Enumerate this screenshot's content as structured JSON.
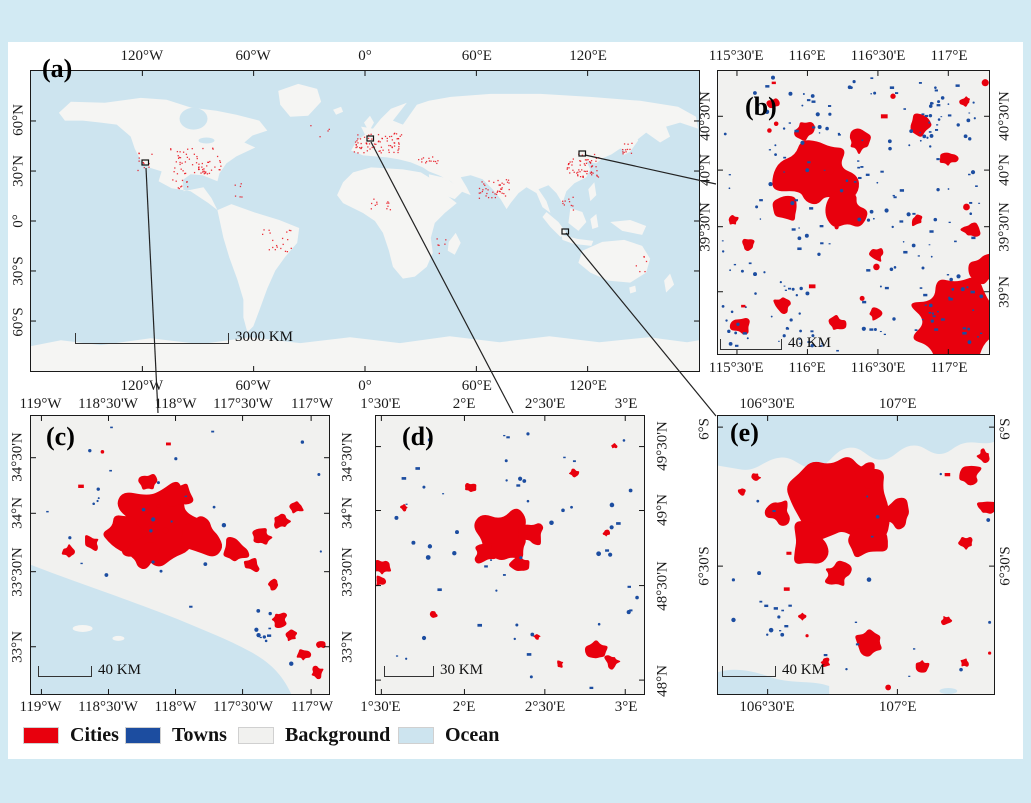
{
  "colors": {
    "page_background": "#d2eaf3",
    "panel_background": "#f1f1ef",
    "land": "#f5f5f3",
    "frame": "#1a1a1a"
  },
  "legend": {
    "items": [
      {
        "label": "Cities",
        "color": "#e8000d"
      },
      {
        "label": "Towns",
        "color": "#1c4da0"
      },
      {
        "label": "Background",
        "color": "#f1f1ef"
      },
      {
        "label": "Ocean",
        "color": "#cde4ef"
      }
    ]
  },
  "panels": {
    "a": {
      "label": "(a)",
      "scalebar": "3000 KM",
      "lon_ticks": [
        "120°W",
        "60°W",
        "0°",
        "60°E",
        "120°E"
      ],
      "lat_ticks": [
        "60°N",
        "30°N",
        "0°",
        "30°S",
        "60°S"
      ]
    },
    "b": {
      "label": "(b)",
      "scalebar": "40 KM",
      "lon_ticks": [
        "115°30'E",
        "116°E",
        "116°30'E",
        "117°E"
      ],
      "lat_ticks": [
        "40°30'N",
        "40°N",
        "39°30'N",
        "39°N"
      ],
      "lat_ticks_left": [
        "40°30'N",
        "40°N",
        "39°30'N"
      ]
    },
    "c": {
      "label": "(c)",
      "scalebar": "40 KM",
      "lon_ticks": [
        "119°W",
        "118°30'W",
        "118°W",
        "117°30'W",
        "117°W"
      ],
      "lat_ticks": [
        "34°30'N",
        "34°N",
        "33°30'N",
        "33°N"
      ]
    },
    "d": {
      "label": "(d)",
      "scalebar": "30 KM",
      "lon_ticks": [
        "1°30'E",
        "2°E",
        "2°30'E",
        "3°E"
      ],
      "lat_ticks": [
        "49°30'N",
        "49°N",
        "48°30'N",
        "48°N"
      ]
    },
    "e": {
      "label": "(e)",
      "scalebar": "40 KM",
      "lon_ticks": [
        "106°30'E",
        "107°E"
      ],
      "lat_ticks": [
        "6°S",
        "6°30'S"
      ]
    }
  }
}
